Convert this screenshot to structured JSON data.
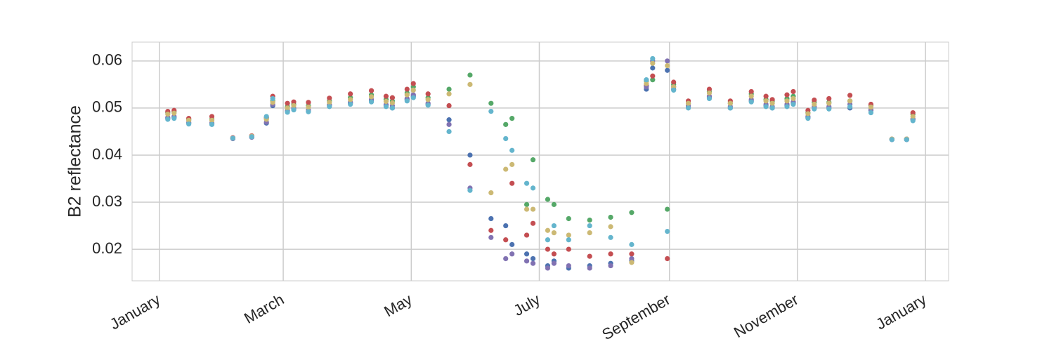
{
  "chart_data": {
    "type": "scatter",
    "y_label": "B2 reflectance",
    "x": [
      4,
      7,
      14,
      25,
      35,
      44,
      51,
      54,
      61,
      64,
      71,
      81,
      91,
      101,
      108,
      111,
      118,
      121,
      128,
      138,
      148,
      158,
      165,
      168,
      175,
      178,
      185,
      188,
      195,
      205,
      215,
      225,
      232,
      235,
      242,
      245,
      252,
      262,
      272,
      282,
      289,
      292,
      299,
      302,
      309,
      312,
      319,
      329,
      339,
      349,
      356,
      359
    ],
    "series": [
      {
        "color": "#4c72b0",
        "values": [
          0.0478,
          0.048,
          0.0468,
          0.0466,
          0.0435,
          0.0438,
          0.0468,
          0.0505,
          0.0493,
          0.0498,
          0.0493,
          0.0505,
          0.051,
          0.0515,
          0.0505,
          0.05,
          0.0518,
          0.0525,
          0.0508,
          0.0475,
          0.04,
          0.0265,
          0.025,
          0.021,
          0.019,
          0.018,
          0.0165,
          0.0175,
          0.016,
          0.0165,
          0.017,
          0.0175,
          0.054,
          0.0585,
          0.058,
          0.054,
          0.0502,
          0.0523,
          0.05,
          0.0515,
          0.0505,
          0.05,
          0.0505,
          0.051,
          0.048,
          0.05,
          0.05,
          0.05,
          0.0495,
          0.0433,
          0.0433,
          0.0475
        ]
      },
      {
        "color": "#55a868",
        "values": [
          0.049,
          0.0492,
          0.0475,
          0.0476,
          0.0436,
          0.044,
          0.0478,
          0.0515,
          0.0503,
          0.0508,
          0.0505,
          0.0515,
          0.0522,
          0.0528,
          0.0518,
          0.0515,
          0.0532,
          0.0545,
          0.0522,
          0.054,
          0.057,
          0.051,
          0.0465,
          0.0478,
          0.0295,
          0.039,
          0.0306,
          0.0295,
          0.0265,
          0.0262,
          0.0268,
          0.0278,
          0.0558,
          0.056,
          0.0285,
          0.055,
          0.051,
          0.0535,
          0.051,
          0.053,
          0.0518,
          0.0515,
          0.052,
          0.0525,
          0.049,
          0.0512,
          0.0512,
          0.0515,
          0.0505,
          0.0434,
          0.0434,
          0.0487
        ]
      },
      {
        "color": "#c44e52",
        "values": [
          0.0493,
          0.0495,
          0.0478,
          0.0482,
          0.0437,
          0.0441,
          0.048,
          0.0525,
          0.051,
          0.0513,
          0.0512,
          0.0521,
          0.053,
          0.0537,
          0.0525,
          0.0522,
          0.054,
          0.0552,
          0.053,
          0.0505,
          0.038,
          0.024,
          0.022,
          0.034,
          0.023,
          0.0255,
          0.02,
          0.019,
          0.02,
          0.0185,
          0.019,
          0.019,
          0.0548,
          0.0568,
          0.018,
          0.0555,
          0.0515,
          0.054,
          0.0515,
          0.0535,
          0.0525,
          0.0518,
          0.0528,
          0.0535,
          0.0495,
          0.0517,
          0.052,
          0.0527,
          0.0508,
          0.0434,
          0.0434,
          0.049
        ]
      },
      {
        "color": "#8172b2",
        "values": [
          0.048,
          0.0482,
          0.047,
          0.0468,
          0.0435,
          0.0438,
          0.047,
          0.0508,
          0.0495,
          0.05,
          0.0496,
          0.0507,
          0.0512,
          0.0518,
          0.0507,
          0.0505,
          0.052,
          0.0528,
          0.051,
          0.0465,
          0.033,
          0.0225,
          0.018,
          0.019,
          0.0175,
          0.017,
          0.016,
          0.017,
          0.0165,
          0.016,
          0.0165,
          0.018,
          0.0545,
          0.06,
          0.06,
          0.0545,
          0.0505,
          0.0525,
          0.0503,
          0.0518,
          0.0508,
          0.0503,
          0.0508,
          0.0513,
          0.0482,
          0.0503,
          0.0503,
          0.0508,
          0.0497,
          0.0433,
          0.0433,
          0.0477
        ]
      },
      {
        "color": "#ccb974",
        "values": [
          0.0487,
          0.0489,
          0.0474,
          0.0474,
          0.0436,
          0.044,
          0.0476,
          0.0512,
          0.05,
          0.0505,
          0.0502,
          0.0512,
          0.0518,
          0.0524,
          0.0514,
          0.0511,
          0.0528,
          0.0538,
          0.0518,
          0.053,
          0.055,
          0.032,
          0.037,
          0.038,
          0.0285,
          0.0285,
          0.024,
          0.0235,
          0.023,
          0.0235,
          0.0248,
          0.0172,
          0.0552,
          0.0595,
          0.059,
          0.0545,
          0.051,
          0.0532,
          0.051,
          0.0525,
          0.0515,
          0.051,
          0.0515,
          0.052,
          0.0488,
          0.0508,
          0.051,
          0.0515,
          0.0502,
          0.0434,
          0.0434,
          0.0482
        ]
      },
      {
        "color": "#64b5cd",
        "values": [
          0.0476,
          0.0478,
          0.0466,
          0.0465,
          0.0436,
          0.0439,
          0.0482,
          0.052,
          0.0491,
          0.0496,
          0.0492,
          0.0503,
          0.0508,
          0.0513,
          0.0503,
          0.05,
          0.0515,
          0.0522,
          0.0506,
          0.045,
          0.0325,
          0.0493,
          0.0435,
          0.041,
          0.034,
          0.033,
          0.022,
          0.025,
          0.022,
          0.025,
          0.0225,
          0.021,
          0.056,
          0.0605,
          0.0238,
          0.0538,
          0.05,
          0.052,
          0.05,
          0.0513,
          0.0503,
          0.05,
          0.0503,
          0.0508,
          0.0478,
          0.0498,
          0.0498,
          0.0503,
          0.049,
          0.0433,
          0.0433,
          0.0473
        ]
      }
    ],
    "xlim": [
      -13,
      376
    ],
    "xticks": [
      {
        "value": 0,
        "label": "January"
      },
      {
        "value": 59,
        "label": "March"
      },
      {
        "value": 120,
        "label": "May"
      },
      {
        "value": 181,
        "label": "July"
      },
      {
        "value": 243,
        "label": "September"
      },
      {
        "value": 304,
        "label": "November"
      },
      {
        "value": 365,
        "label": "January"
      }
    ],
    "ylim": [
      0.0133,
      0.064
    ],
    "yticks": [
      0.02,
      0.03,
      0.04,
      0.05,
      0.06
    ],
    "grid": true
  }
}
